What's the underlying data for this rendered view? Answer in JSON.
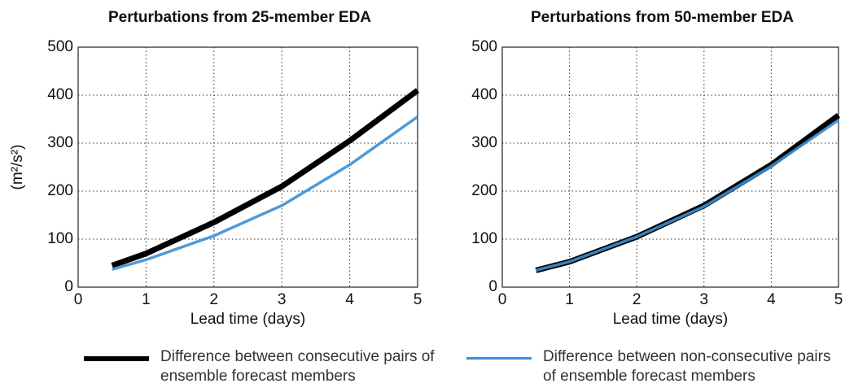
{
  "chart_data": [
    {
      "type": "line",
      "title": "Perturbations from 25-member EDA",
      "xlabel": "Lead time (days)",
      "ylabel": "(m²/s²)",
      "xlim": [
        0,
        5
      ],
      "xticks": [
        0,
        1,
        2,
        3,
        4,
        5
      ],
      "ylim": [
        0,
        500
      ],
      "yticks": [
        0,
        100,
        200,
        300,
        400,
        500
      ],
      "grid": true,
      "x": [
        0.5,
        1,
        2,
        3,
        4,
        5
      ],
      "series": [
        {
          "name": "Difference between consecutive pairs of ensemble forecast members",
          "color": "#000000",
          "values": [
            45,
            70,
            135,
            210,
            305,
            410
          ]
        },
        {
          "name": "Difference between non-consecutive pairs of ensemble forecast members",
          "color": "#3a8fd6",
          "values": [
            37,
            57,
            107,
            170,
            255,
            355
          ]
        }
      ]
    },
    {
      "type": "line",
      "title": "Perturbations from 50-member EDA",
      "xlabel": "Lead time (days)",
      "xlim": [
        0,
        5
      ],
      "xticks": [
        0,
        1,
        2,
        3,
        4,
        5
      ],
      "ylim": [
        0,
        500
      ],
      "yticks": [
        0,
        100,
        200,
        300,
        400,
        500
      ],
      "grid": true,
      "x": [
        0.5,
        1,
        2,
        3,
        4,
        5
      ],
      "series": [
        {
          "color": "#000000",
          "values": [
            35,
            53,
            105,
            170,
            255,
            358
          ]
        },
        {
          "color": "#3a8fd6",
          "values": [
            35,
            53,
            105,
            168,
            252,
            348
          ]
        }
      ]
    }
  ]
}
